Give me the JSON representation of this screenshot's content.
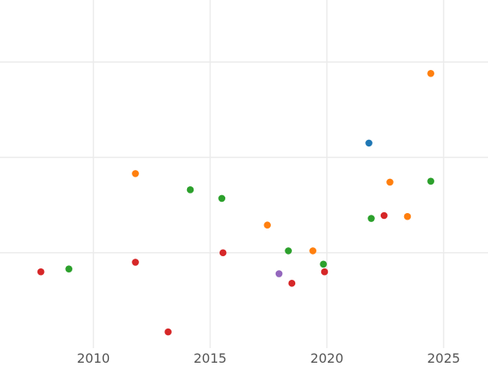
{
  "chart_data": {
    "type": "scatter",
    "title": "",
    "xlabel": "",
    "ylabel": "",
    "grid": true,
    "legend": "none",
    "y_axis_labels": "hidden",
    "x_ticks": [
      2010,
      2015,
      2020,
      2025
    ],
    "xlim": [
      2006.0,
      2026.9
    ],
    "ylim": [
      0.0,
      3.65
    ],
    "y_gridlines": [
      1.0,
      2.0,
      3.0
    ],
    "colors": {
      "blue": "#1f77b4",
      "orange": "#ff7f0e",
      "green": "#2ca02c",
      "red": "#d62728",
      "purple": "#9467bd"
    },
    "series": [
      {
        "color": "#1f77b4",
        "points": [
          {
            "x": 2021.8,
            "y": 2.15
          }
        ]
      },
      {
        "color": "#ff7f0e",
        "points": [
          {
            "x": 2011.8,
            "y": 1.83
          },
          {
            "x": 2017.45,
            "y": 1.29
          },
          {
            "x": 2019.4,
            "y": 1.02
          },
          {
            "x": 2022.7,
            "y": 1.74
          },
          {
            "x": 2023.45,
            "y": 1.38
          },
          {
            "x": 2024.45,
            "y": 2.88
          }
        ]
      },
      {
        "color": "#2ca02c",
        "points": [
          {
            "x": 2008.95,
            "y": 0.83
          },
          {
            "x": 2014.15,
            "y": 1.66
          },
          {
            "x": 2015.5,
            "y": 1.57
          },
          {
            "x": 2018.35,
            "y": 1.02
          },
          {
            "x": 2019.85,
            "y": 0.88
          },
          {
            "x": 2021.9,
            "y": 1.36
          },
          {
            "x": 2024.45,
            "y": 1.75
          }
        ]
      },
      {
        "color": "#d62728",
        "points": [
          {
            "x": 2007.75,
            "y": 0.8
          },
          {
            "x": 2011.8,
            "y": 0.9
          },
          {
            "x": 2013.2,
            "y": 0.17
          },
          {
            "x": 2015.55,
            "y": 1.0
          },
          {
            "x": 2018.5,
            "y": 0.68
          },
          {
            "x": 2019.9,
            "y": 0.8
          },
          {
            "x": 2022.45,
            "y": 1.39
          }
        ]
      },
      {
        "color": "#9467bd",
        "points": [
          {
            "x": 2017.95,
            "y": 0.78
          }
        ]
      }
    ]
  }
}
